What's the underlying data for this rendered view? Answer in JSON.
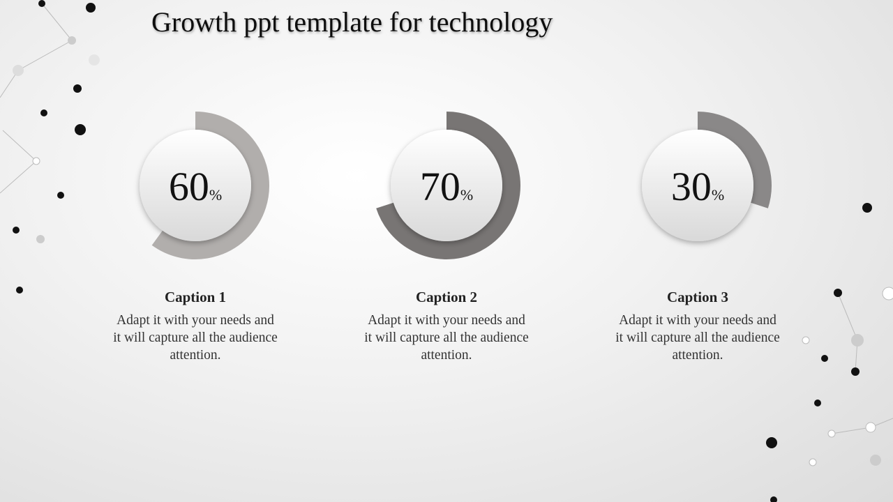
{
  "chart_data": {
    "type": "progress-ring",
    "title": "Growth ppt template for technology",
    "categories": [
      "Caption 1",
      "Caption 2",
      "Caption 3"
    ],
    "values": [
      60,
      70,
      30
    ],
    "unit": "%",
    "colors": [
      "#b1aeac",
      "#787574",
      "#8a8888"
    ],
    "descriptions": [
      "Adapt it with your needs and it will capture all the audience attention.",
      "Adapt it with your needs and it will capture all the audience attention.",
      "Adapt it with your needs and it will capture all the audience attention."
    ]
  }
}
